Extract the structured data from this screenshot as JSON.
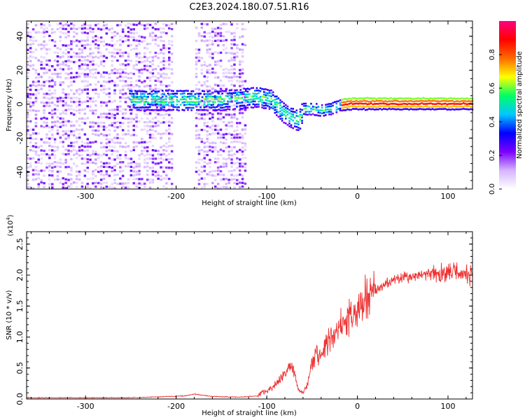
{
  "title": "C2E3.2024.180.07.51.R16",
  "chart_data": [
    {
      "type": "heatmap",
      "name": "spectrogram",
      "xlabel": "Height of straight line (km)",
      "ylabel": "Frequency (Hz)",
      "xlim": [
        -365,
        127
      ],
      "ylim": [
        -50,
        49
      ],
      "xticks": [
        -300,
        -200,
        -100,
        0,
        100
      ],
      "yticks": [
        40,
        20,
        0,
        -20,
        -40
      ],
      "colorbar": {
        "label": "Normalized spectral amplitude",
        "range": [
          0,
          1
        ],
        "ticks": [
          "0.0",
          "0.2",
          "0.4",
          "0.6",
          "0.8"
        ],
        "colors": [
          "#ffffff",
          "#d4b4ff",
          "#7b00ff",
          "#0000ff",
          "#00c8ff",
          "#00ff64",
          "#ffff00",
          "#ff6a00",
          "#ff0000",
          "#ff0080"
        ]
      },
      "signal_center_track": {
        "x": [
          -250,
          -200,
          -150,
          -110,
          -95,
          -85,
          -75,
          -65,
          -60,
          -50,
          -40,
          -30,
          -20,
          -10,
          0,
          20,
          60,
          127
        ],
        "freq": [
          3,
          3,
          3,
          5,
          3,
          -3,
          -7,
          -9,
          -2,
          -2,
          -3,
          -2,
          0,
          1,
          1,
          1,
          1,
          1
        ]
      },
      "noise_regions_x": [
        [
          -365,
          -205
        ],
        [
          -180,
          -125
        ]
      ]
    },
    {
      "type": "line",
      "name": "snr",
      "xlabel": "Height of straight line (km)",
      "ylabel": "SNR (10 * v/v)",
      "scale_note": "(x10",
      "scale_exp": "4",
      "xlim": [
        -365,
        127
      ],
      "ylim": [
        0,
        2.7
      ],
      "xticks": [
        -300,
        -200,
        -100,
        0,
        100
      ],
      "yticks": [
        "0.0",
        "0.5",
        "1.0",
        "1.5",
        "2.0",
        "2.5"
      ],
      "color": "#ee3030",
      "series": [
        {
          "x": [
            -365,
            -250,
            -190,
            -180,
            -170,
            -160,
            -130,
            -110,
            -100,
            -90,
            -80,
            -75,
            -70,
            -65,
            -60,
            -55,
            -50,
            -45,
            -40,
            -35,
            -30,
            -20,
            -10,
            0,
            10,
            20,
            30,
            40,
            50,
            60,
            70,
            80,
            90,
            100,
            110,
            120,
            127
          ],
          "y": [
            0.02,
            0.02,
            0.05,
            0.08,
            0.06,
            0.04,
            0.03,
            0.05,
            0.12,
            0.25,
            0.4,
            0.55,
            0.42,
            0.15,
            0.1,
            0.25,
            0.55,
            0.8,
            0.65,
            0.9,
            1.0,
            1.15,
            1.3,
            1.45,
            1.6,
            1.75,
            1.85,
            1.92,
            1.95,
            1.98,
            2.0,
            2.02,
            2.02,
            2.05,
            2.05,
            2.0,
            2.0
          ]
        }
      ]
    }
  ]
}
